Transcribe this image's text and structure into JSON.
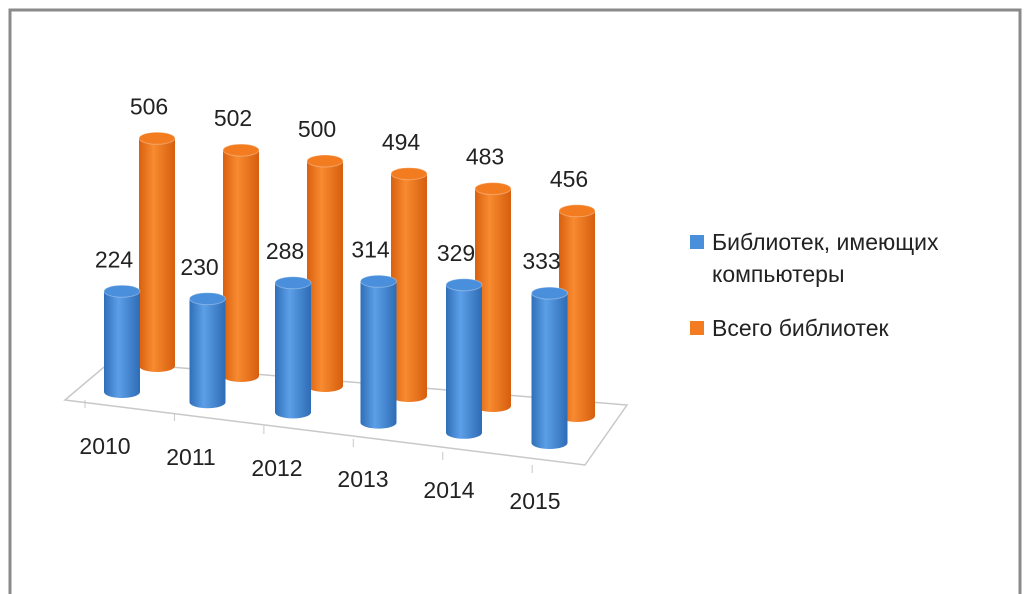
{
  "chart_data": {
    "type": "bar3d",
    "categories": [
      "2010",
      "2011",
      "2012",
      "2013",
      "2014",
      "2015"
    ],
    "series": [
      {
        "name": "Библиотек, имеющих компьютеры",
        "color": "#4a8fdc",
        "values": [
          224,
          230,
          288,
          314,
          329,
          333
        ]
      },
      {
        "name": "Всего библиотек",
        "color": "#f47c20",
        "values": [
          506,
          502,
          500,
          494,
          483,
          456
        ]
      }
    ],
    "legend": "right"
  }
}
